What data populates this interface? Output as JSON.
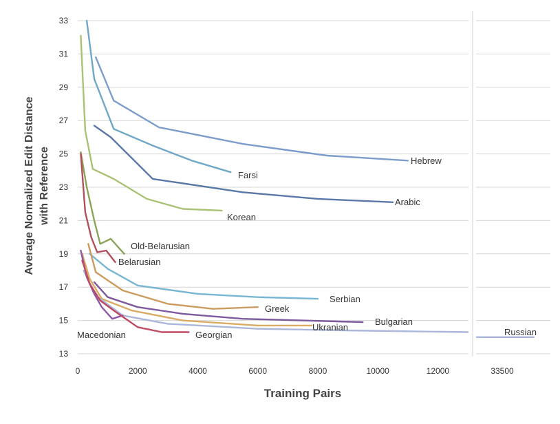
{
  "chart_data": {
    "type": "line",
    "title": "",
    "xlabel": "Training Pairs",
    "ylabel_lines": [
      "Average Normalized Edit Distance",
      "with Reference"
    ],
    "xlim": [
      0,
      13000
    ],
    "ylim": [
      13,
      33
    ],
    "x_ticks": [
      0,
      2000,
      4000,
      6000,
      8000,
      10000,
      12000
    ],
    "x_tick_labels": [
      "0",
      "2000",
      "4000",
      "6000",
      "8000",
      "10000",
      "12000"
    ],
    "y_ticks": [
      13,
      15,
      17,
      19,
      21,
      23,
      25,
      27,
      29,
      31,
      33
    ],
    "y_tick_labels": [
      "13",
      "15",
      "17",
      "19",
      "21",
      "23",
      "25",
      "27",
      "29",
      "31",
      "33"
    ],
    "grid": true,
    "legend": "none",
    "extra_segment": {
      "x_tick_label": "33500",
      "series": "Russian",
      "label": "Russian",
      "y": 14.0
    },
    "series": [
      {
        "name": "Hebrew",
        "label": "Hebrew",
        "color": "#7c9ccc",
        "x": [
          600,
          1200,
          2700,
          5500,
          8300,
          11000
        ],
        "y": [
          30.8,
          28.2,
          26.6,
          25.6,
          24.9,
          24.6
        ]
      },
      {
        "name": "Farsi",
        "label": "Farsi",
        "color": "#6fa7c7",
        "x": [
          300,
          550,
          1200,
          2500,
          3800,
          5100
        ],
        "y": [
          33,
          29.5,
          26.5,
          25.5,
          24.6,
          23.9
        ]
      },
      {
        "name": "Arabic",
        "label": "Arabic",
        "color": "#5a77a9",
        "x": [
          550,
          1100,
          2500,
          5500,
          8000,
          10500
        ],
        "y": [
          26.7,
          26.0,
          23.5,
          22.7,
          22.3,
          22.1
        ]
      },
      {
        "name": "Korean",
        "label": "Korean",
        "color": "#a9c274",
        "x": [
          100,
          250,
          500,
          1200,
          2300,
          3500,
          4800
        ],
        "y": [
          32.1,
          26.4,
          24.1,
          23.5,
          22.3,
          21.7,
          21.6
        ]
      },
      {
        "name": "Old-Belarusian",
        "label": "Old-Belarusian",
        "color": "#8ba356",
        "x": [
          100,
          300,
          550,
          750,
          1100,
          1550
        ],
        "y": [
          25.1,
          23.0,
          21.0,
          19.6,
          19.9,
          19.0
        ]
      },
      {
        "name": "Belarusian",
        "label": "Belarusian",
        "color": "#b24f5c",
        "x": [
          100,
          250,
          450,
          650,
          950,
          1250
        ],
        "y": [
          25.0,
          21.5,
          20.0,
          19.1,
          19.2,
          18.5
        ]
      },
      {
        "name": "Serbian",
        "label": "Serbian",
        "color": "#77b6d3",
        "x": [
          400,
          1000,
          2000,
          4000,
          6000,
          8000
        ],
        "y": [
          19.0,
          18.1,
          17.1,
          16.6,
          16.4,
          16.3
        ]
      },
      {
        "name": "Greek",
        "label": "Greek",
        "color": "#cc9a5d",
        "x": [
          350,
          600,
          1500,
          3000,
          4500,
          6000
        ],
        "y": [
          19.6,
          17.9,
          16.8,
          16.0,
          15.7,
          15.8
        ]
      },
      {
        "name": "Bulgarian",
        "label": "Bulgarian",
        "color": "#7d5a9d",
        "x": [
          550,
          1000,
          2000,
          3500,
          5500,
          9500
        ],
        "y": [
          17.3,
          16.4,
          15.8,
          15.4,
          15.1,
          14.9
        ]
      },
      {
        "name": "Ukranian",
        "label": "Ukranian",
        "color": "#d9ab65",
        "x": [
          150,
          400,
          800,
          1800,
          3500,
          6000,
          7800
        ],
        "y": [
          19.0,
          17.5,
          16.3,
          15.6,
          15.0,
          14.7,
          14.7
        ]
      },
      {
        "name": "Russian",
        "label": "Russian",
        "color": "#aab7da",
        "x": [
          200,
          600,
          1500,
          3000,
          6000,
          9000,
          13000
        ],
        "y": [
          18.0,
          16.5,
          15.3,
          14.8,
          14.5,
          14.4,
          14.3
        ]
      },
      {
        "name": "Macedonian",
        "label": "Macedonian",
        "color": "#8c5aa8",
        "x": [
          100,
          300,
          550,
          800,
          1150,
          1500
        ],
        "y": [
          19.2,
          17.6,
          16.6,
          15.8,
          15.1,
          15.3
        ]
      },
      {
        "name": "Georgian",
        "label": "Georgian",
        "color": "#c04862",
        "x": [
          150,
          400,
          750,
          1200,
          2000,
          2800,
          3700
        ],
        "y": [
          18.6,
          17.2,
          16.2,
          15.6,
          14.6,
          14.3,
          14.3
        ]
      }
    ]
  }
}
